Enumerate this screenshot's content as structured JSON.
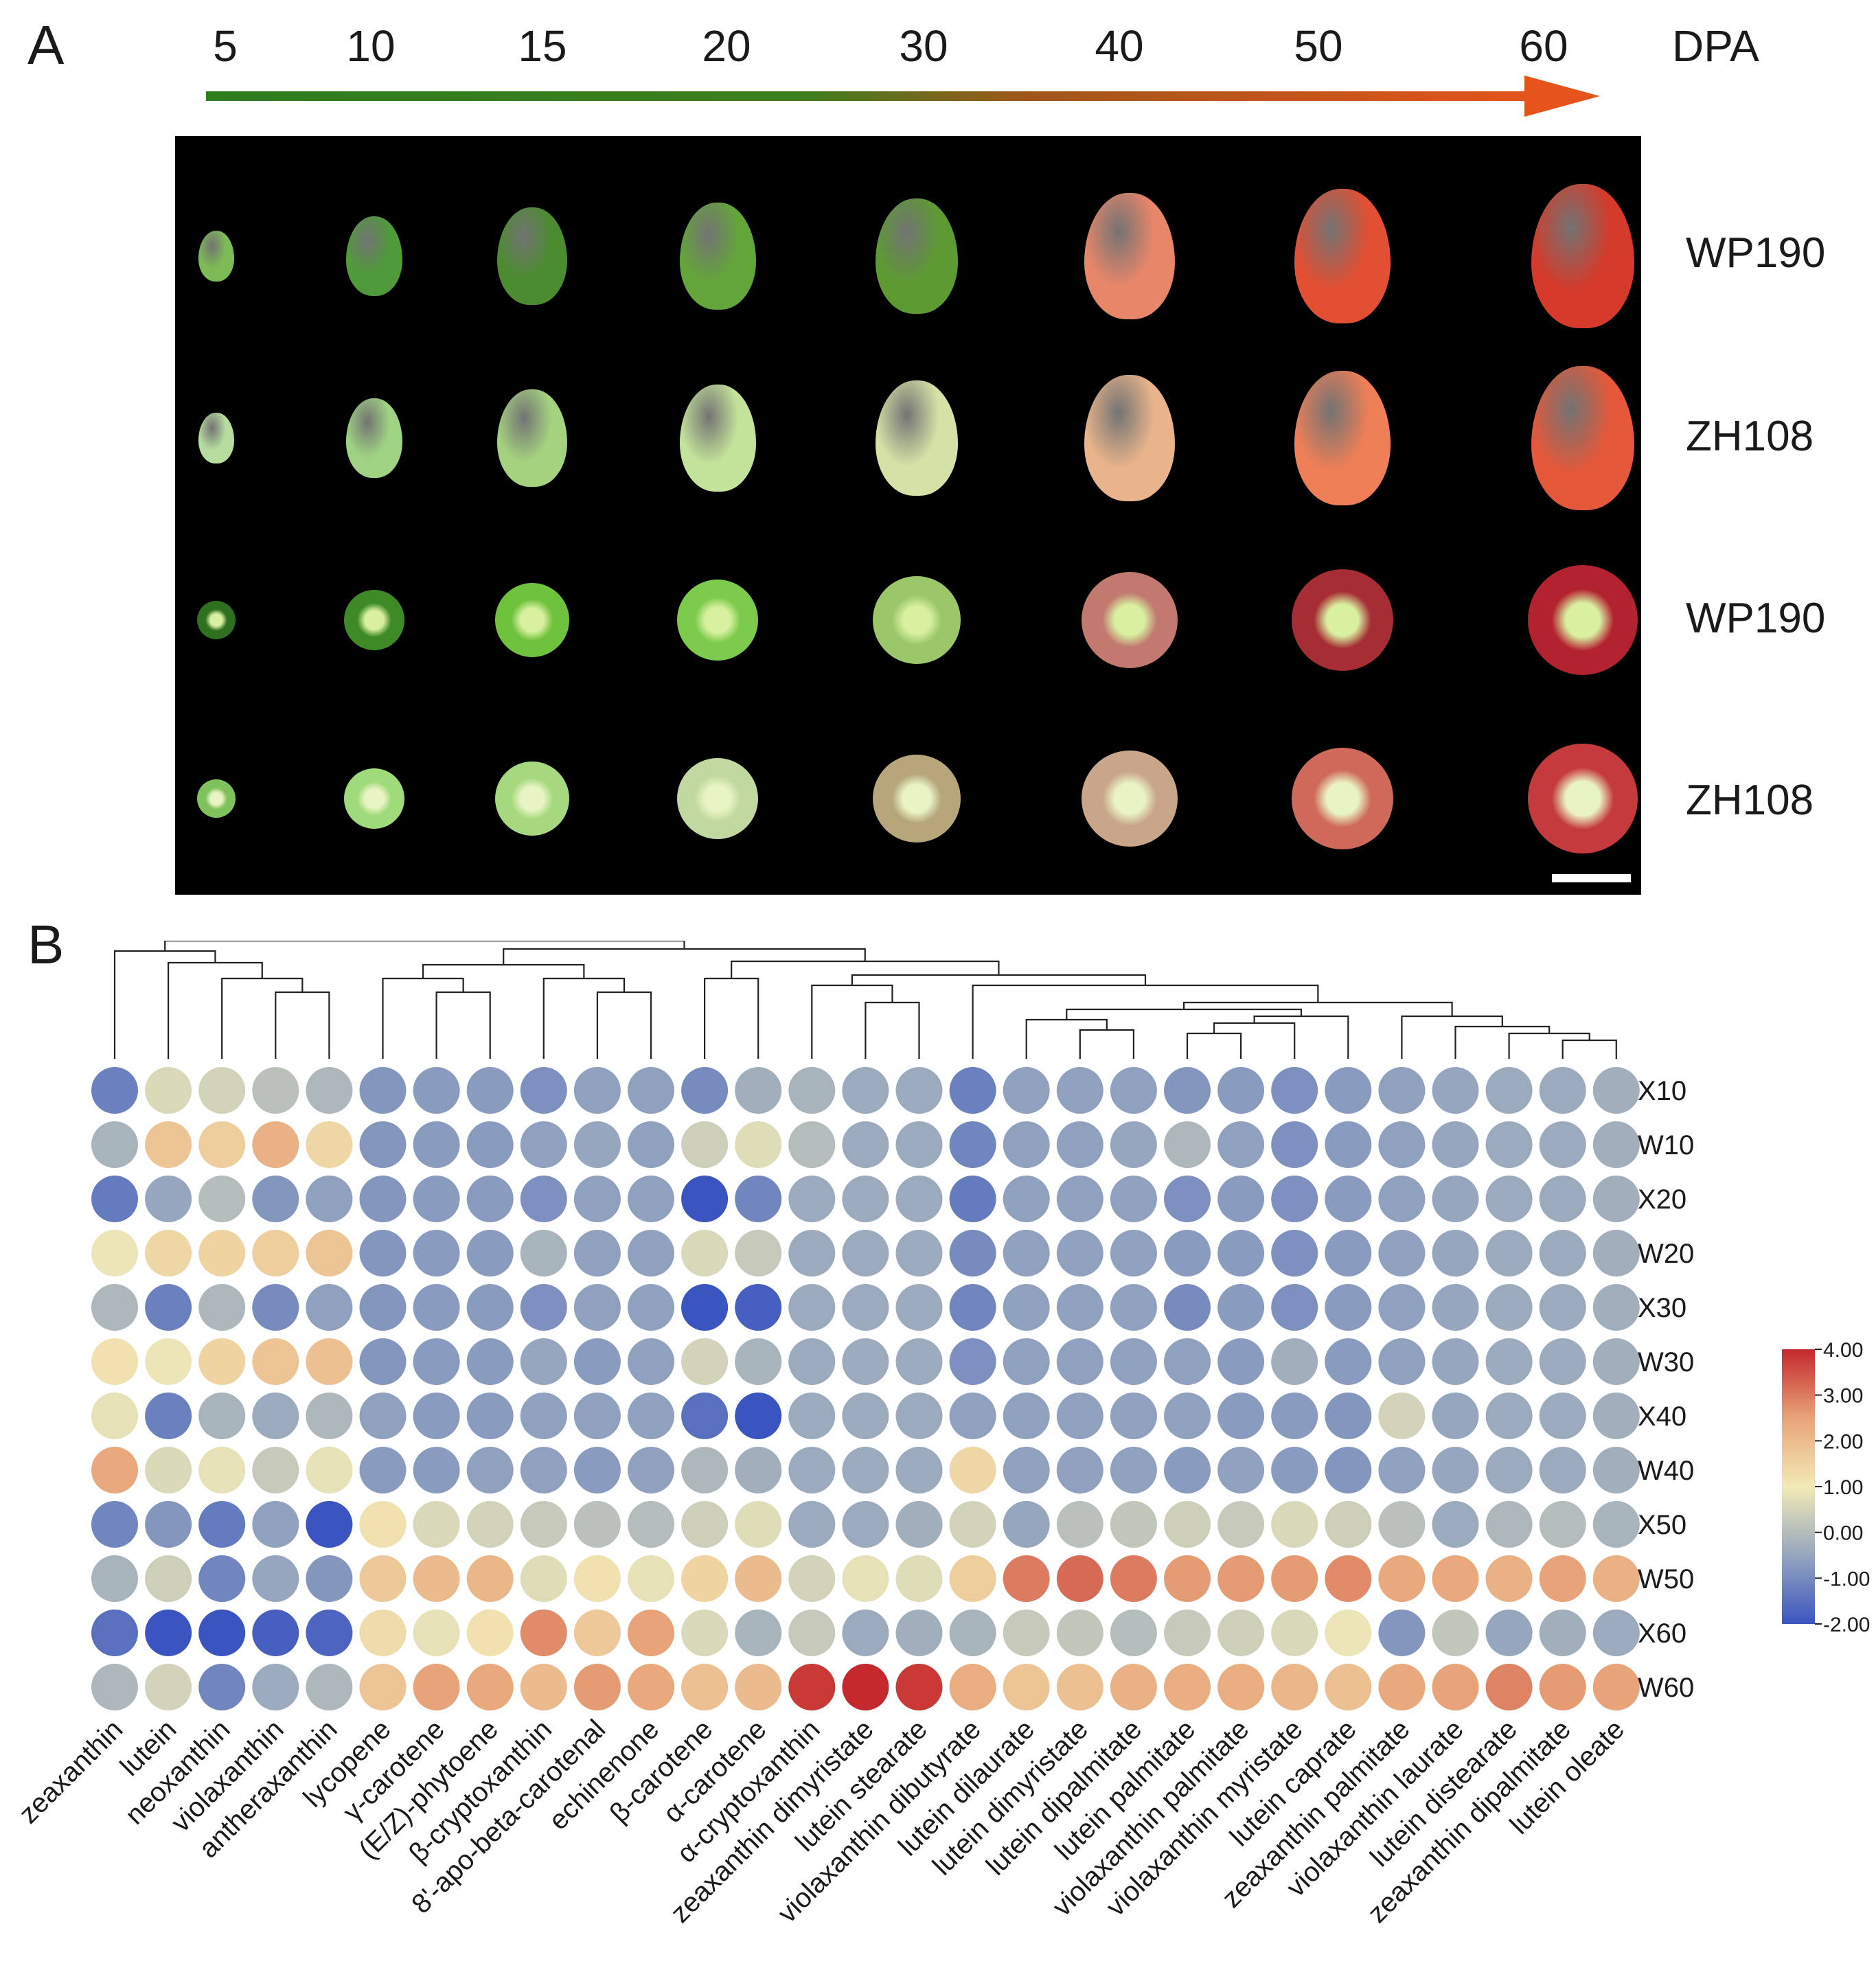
{
  "panel_a": {
    "label": "A",
    "dpa_ticks": [
      "5",
      "10",
      "15",
      "20",
      "30",
      "40",
      "50",
      "60"
    ],
    "dpa_unit": "DPA",
    "arrow_colors": [
      "#2e7d1f",
      "#e4541b"
    ],
    "row_labels": [
      "WP190",
      "ZH108",
      "WP190",
      "ZH108"
    ]
  },
  "panel_b": {
    "label": "B"
  },
  "chart_data": {
    "type": "heatmap",
    "title": "",
    "columns": [
      "zeaxanthin",
      "lutein",
      "neoxanthin",
      "violaxanthin",
      "antheraxanthin",
      "lycopene",
      "γ-carotene",
      "(E/Z)-phytoene",
      "β-cryptoxanthin",
      "8'-apo-beta-carotenal",
      "echinenone",
      "β-carotene",
      "α-carotene",
      "α-cryptoxanthin",
      "zeaxanthin dimyristate",
      "lutein stearate",
      "violaxanthin dibutyrate",
      "lutein dilaurate",
      "lutein dimyristate",
      "lutein dipalmitate",
      "lutein palmitate",
      "violaxanthin palmitate",
      "violaxanthin myristate",
      "lutein caprate",
      "zeaxanthin palmitate",
      "violaxanthin laurate",
      "lutein distearate",
      "zeaxanthin dipalmitate",
      "lutein oleate"
    ],
    "rows": [
      "X10",
      "W10",
      "X20",
      "W20",
      "X30",
      "W30",
      "X40",
      "W40",
      "X50",
      "W50",
      "X60",
      "W60"
    ],
    "values": [
      [
        -1.2,
        0.6,
        0.5,
        0.1,
        -0.1,
        -0.8,
        -0.7,
        -0.7,
        -0.9,
        -0.6,
        -0.6,
        -1.0,
        -0.3,
        -0.2,
        -0.4,
        -0.4,
        -1.2,
        -0.6,
        -0.6,
        -0.6,
        -0.8,
        -0.7,
        -0.9,
        -0.7,
        -0.6,
        -0.5,
        -0.4,
        -0.4,
        -0.3
      ],
      [
        -0.2,
        1.8,
        1.6,
        2.2,
        1.4,
        -0.8,
        -0.7,
        -0.7,
        -0.6,
        -0.5,
        -0.6,
        0.4,
        0.7,
        0.0,
        -0.4,
        -0.4,
        -1.1,
        -0.6,
        -0.6,
        -0.5,
        -0.1,
        -0.6,
        -0.9,
        -0.7,
        -0.6,
        -0.5,
        -0.4,
        -0.4,
        -0.3
      ],
      [
        -1.3,
        -0.5,
        0.0,
        -0.8,
        -0.6,
        -0.8,
        -0.7,
        -0.7,
        -0.9,
        -0.6,
        -0.6,
        -2.0,
        -1.1,
        -0.4,
        -0.4,
        -0.4,
        -1.3,
        -0.6,
        -0.6,
        -0.6,
        -0.9,
        -0.7,
        -0.9,
        -0.7,
        -0.6,
        -0.5,
        -0.4,
        -0.4,
        -0.3
      ],
      [
        0.9,
        1.4,
        1.5,
        1.6,
        1.8,
        -0.8,
        -0.7,
        -0.7,
        -0.2,
        -0.6,
        -0.6,
        0.6,
        0.3,
        -0.4,
        -0.4,
        -0.4,
        -1.0,
        -0.6,
        -0.6,
        -0.6,
        -0.7,
        -0.7,
        -0.9,
        -0.7,
        -0.6,
        -0.5,
        -0.4,
        -0.4,
        -0.3
      ],
      [
        -0.1,
        -1.2,
        -0.1,
        -1.0,
        -0.6,
        -0.8,
        -0.7,
        -0.7,
        -0.9,
        -0.6,
        -0.6,
        -2.0,
        -1.8,
        -0.4,
        -0.4,
        -0.4,
        -1.1,
        -0.6,
        -0.6,
        -0.6,
        -1.0,
        -0.7,
        -0.9,
        -0.7,
        -0.6,
        -0.5,
        -0.4,
        -0.4,
        -0.3
      ],
      [
        1.2,
        0.9,
        1.5,
        1.8,
        1.9,
        -0.8,
        -0.7,
        -0.7,
        -0.5,
        -0.7,
        -0.6,
        0.5,
        -0.2,
        -0.4,
        -0.4,
        -0.4,
        -0.9,
        -0.6,
        -0.6,
        -0.6,
        -0.6,
        -0.7,
        -0.3,
        -0.7,
        -0.6,
        -0.5,
        -0.4,
        -0.4,
        -0.3
      ],
      [
        0.8,
        -1.2,
        -0.2,
        -0.4,
        -0.1,
        -0.6,
        -0.7,
        -0.7,
        -0.6,
        -0.6,
        -0.6,
        -1.5,
        -2.0,
        -0.4,
        -0.4,
        -0.4,
        -0.6,
        -0.6,
        -0.6,
        -0.6,
        -0.6,
        -0.7,
        -0.7,
        -0.8,
        0.5,
        -0.5,
        -0.4,
        -0.4,
        -0.3
      ],
      [
        2.4,
        0.6,
        0.8,
        0.3,
        0.8,
        -0.7,
        -0.7,
        -0.6,
        -0.6,
        -0.7,
        -0.6,
        -0.1,
        -0.3,
        -0.4,
        -0.4,
        -0.4,
        1.4,
        -0.6,
        -0.6,
        -0.6,
        -0.7,
        -0.6,
        -0.7,
        -0.8,
        -0.6,
        -0.5,
        -0.4,
        -0.4,
        -0.3
      ],
      [
        -1.1,
        -0.8,
        -1.3,
        -0.6,
        -2.0,
        1.2,
        0.6,
        0.5,
        0.3,
        0.1,
        0.0,
        0.4,
        0.7,
        -0.4,
        -0.4,
        -0.3,
        0.5,
        -0.5,
        0.1,
        0.2,
        0.4,
        0.3,
        0.6,
        0.4,
        0.1,
        -0.4,
        -0.1,
        0.0,
        -0.2
      ],
      [
        -0.2,
        0.4,
        -1.1,
        -0.5,
        -0.8,
        1.7,
        2.0,
        2.1,
        0.7,
        1.2,
        0.8,
        1.5,
        2.0,
        0.5,
        0.8,
        0.7,
        1.6,
        3.0,
        3.2,
        3.0,
        2.6,
        2.6,
        2.6,
        2.8,
        2.4,
        2.4,
        2.2,
        2.5,
        2.2
      ],
      [
        -1.5,
        -2.0,
        -2.0,
        -1.8,
        -1.7,
        1.3,
        0.8,
        1.2,
        2.8,
        1.7,
        2.5,
        0.6,
        -0.2,
        0.3,
        -0.4,
        -0.3,
        -0.2,
        0.3,
        0.2,
        0.0,
        0.3,
        0.4,
        0.6,
        0.9,
        -0.8,
        0.2,
        -0.5,
        -0.3,
        -0.4
      ],
      [
        -0.1,
        0.5,
        -1.1,
        -0.4,
        -0.1,
        1.8,
        2.5,
        2.4,
        2.0,
        2.6,
        2.4,
        1.9,
        2.0,
        3.8,
        4.0,
        3.8,
        2.3,
        1.8,
        1.9,
        2.2,
        2.3,
        2.3,
        2.1,
        1.9,
        2.4,
        2.5,
        2.9,
        2.6,
        2.5
      ]
    ],
    "color_scale": {
      "min": -2.0,
      "max": 4.0,
      "ticks": [
        "-2.00",
        "-1.00",
        "0.00",
        "1.00",
        "2.00",
        "3.00",
        "4.00"
      ],
      "colors": [
        "#3b55c0",
        "#95a6be",
        "#f2eab6",
        "#e8a478",
        "#c4282c"
      ]
    },
    "dendrogram": true
  }
}
